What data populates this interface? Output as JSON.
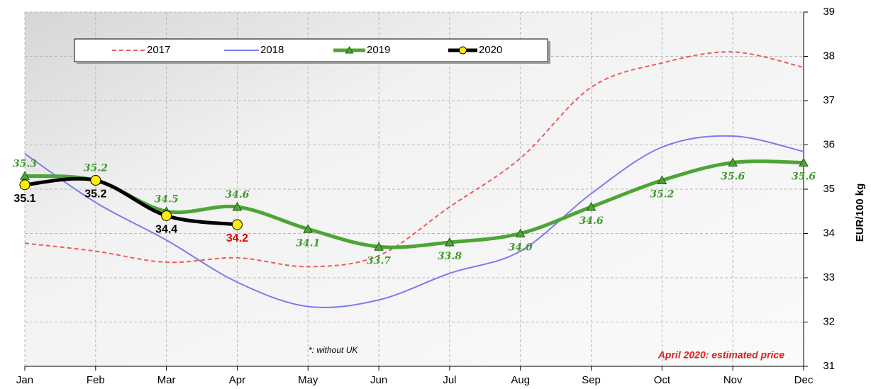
{
  "chart_data": {
    "type": "line",
    "categories": [
      "Jan",
      "Feb",
      "Mar",
      "Apr",
      "May",
      "Jun",
      "Jul",
      "Aug",
      "Sep",
      "Oct",
      "Nov",
      "Dec"
    ],
    "y_axis_label": "EUR/100 kg",
    "ylim": [
      31,
      39
    ],
    "yticks": [
      31,
      32,
      33,
      34,
      35,
      36,
      37,
      38,
      39
    ],
    "grid": true,
    "legend_position": "top-left",
    "series": [
      {
        "name": "2017",
        "color": "#f05a5a",
        "line_style": "dashed",
        "width": 2,
        "values": [
          33.78,
          33.6,
          33.35,
          33.45,
          33.25,
          33.5,
          34.6,
          35.7,
          37.3,
          37.85,
          38.1,
          37.75
        ]
      },
      {
        "name": "2018",
        "color": "#7b7bf0",
        "line_style": "solid",
        "width": 2,
        "values": [
          35.8,
          34.7,
          33.85,
          32.9,
          32.35,
          32.5,
          33.1,
          33.6,
          34.9,
          35.95,
          36.2,
          35.85
        ]
      },
      {
        "name": "2019",
        "color": "#4ca535",
        "line_style": "solid",
        "width": 5,
        "marker": "triangle",
        "values": [
          35.3,
          35.2,
          34.5,
          34.6,
          34.1,
          33.7,
          33.8,
          34.0,
          34.6,
          35.2,
          35.6,
          35.6
        ],
        "value_labels": [
          "35.3",
          "35.2",
          "34.5",
          "34.6",
          "34.1",
          "33.7",
          "33.8",
          "34.0",
          "34.6",
          "35.2",
          "35.6",
          "35.6"
        ],
        "label_color": "#3f9a2c"
      },
      {
        "name": "2020",
        "color": "#000000",
        "line_style": "solid",
        "width": 5,
        "marker": "circle",
        "marker_color": "#ffee00",
        "values": [
          35.1,
          35.2,
          34.4,
          34.2,
          null,
          null,
          null,
          null,
          null,
          null,
          null,
          null
        ],
        "value_labels": [
          "35.1",
          "35.2",
          "34.4",
          "34.2",
          null,
          null,
          null,
          null,
          null,
          null,
          null,
          null
        ],
        "label_colors": [
          "#000000",
          "#000000",
          "#000000",
          "#e00000",
          null,
          null,
          null,
          null,
          null,
          null,
          null,
          null
        ]
      }
    ],
    "annotations": [
      "*: without UK",
      "April 2020: estimated price"
    ]
  }
}
